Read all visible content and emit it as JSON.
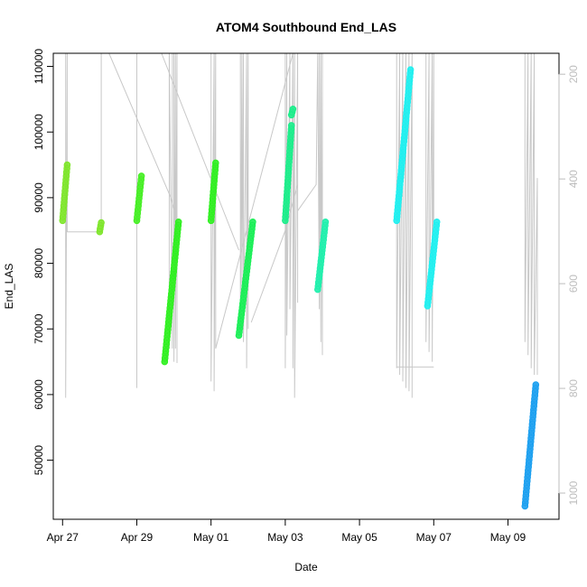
{
  "chart_data": {
    "type": "scatter",
    "title": "ATOM4 Southbound End_LAS",
    "xlabel": "Date",
    "ylabel": "End_LAS",
    "xlim": [
      "2024-04-26T18:00",
      "2024-05-10T09:00"
    ],
    "ylim": [
      41000,
      112000
    ],
    "y2lim": [
      160,
      1050
    ],
    "x_ticks": [
      "Apr 27",
      "Apr 29",
      "May 01",
      "May 03",
      "May 05",
      "May 07",
      "May 09"
    ],
    "x_tick_values": [
      "2024-04-27T00:00",
      "2024-04-29T00:00",
      "2024-05-01T00:00",
      "2024-05-03T00:00",
      "2024-05-05T00:00",
      "2024-05-07T00:00",
      "2024-05-09T00:00"
    ],
    "y_ticks": [
      50000,
      60000,
      70000,
      80000,
      90000,
      100000,
      110000
    ],
    "y2_ticks": [
      200,
      400,
      600,
      800,
      1000
    ],
    "grid": false,
    "legend": "none",
    "series": [
      {
        "color": "#7ee62a",
        "points": [
          [
            "2024-04-27T00:00",
            86500
          ],
          [
            "2024-04-27T03:00",
            95000
          ]
        ]
      },
      {
        "color": "#7ee62a",
        "points": [
          [
            "2024-04-28T00:00",
            84800
          ],
          [
            "2024-04-28T01:00",
            86200
          ]
        ]
      },
      {
        "color": "#44ef22",
        "points": [
          [
            "2024-04-29T00:00",
            86500
          ],
          [
            "2024-04-29T03:00",
            93300
          ]
        ]
      },
      {
        "color": "#2ef01f",
        "points": [
          [
            "2024-04-29T18:00",
            65000
          ],
          [
            "2024-04-30T03:00",
            86300
          ]
        ]
      },
      {
        "color": "#2ef01f",
        "points": [
          [
            "2024-05-01T00:00",
            86500
          ],
          [
            "2024-05-01T03:00",
            95300
          ]
        ]
      },
      {
        "color": "#18ef55",
        "points": [
          [
            "2024-05-01T18:00",
            69000
          ],
          [
            "2024-05-02T03:00",
            86300
          ]
        ]
      },
      {
        "color": "#1aee8a",
        "points": [
          [
            "2024-05-03T00:00",
            86500
          ],
          [
            "2024-05-03T04:00",
            101000
          ]
        ]
      },
      {
        "color": "#1aee8a",
        "points": [
          [
            "2024-05-03T04:00",
            102600
          ],
          [
            "2024-05-03T05:00",
            103500
          ]
        ]
      },
      {
        "color": "#1ef0ac",
        "points": [
          [
            "2024-05-03T21:00",
            76000
          ],
          [
            "2024-05-04T02:00",
            86300
          ]
        ]
      },
      {
        "color": "#1ef0f0",
        "points": [
          [
            "2024-05-06T00:00",
            86500
          ],
          [
            "2024-05-06T09:00",
            109500
          ]
        ]
      },
      {
        "color": "#1ef0f0",
        "points": [
          [
            "2024-05-06T20:00",
            73500
          ],
          [
            "2024-05-07T02:00",
            86300
          ]
        ]
      },
      {
        "color": "#1a9ff0",
        "points": [
          [
            "2024-05-09T11:00",
            43000
          ],
          [
            "2024-05-09T18:00",
            61500
          ]
        ]
      }
    ],
    "background_traces": [
      {
        "color": "#c8c8c8",
        "points": [
          [
            "2024-04-27T02:00",
            112000
          ],
          [
            "2024-04-27T02:00",
            59500
          ],
          [
            "2024-04-27T03:00",
            112000
          ],
          [
            "2024-04-27T03:00",
            84800
          ],
          [
            "2024-04-28T01:00",
            84800
          ],
          [
            "2024-04-28T01:00",
            112000
          ]
        ]
      },
      {
        "color": "#c8c8c8",
        "points": [
          [
            "2024-04-28T06:00",
            112000
          ],
          [
            "2024-04-29T22:00",
            90000
          ],
          [
            "2024-04-30T04:00",
            84800
          ]
        ]
      },
      {
        "color": "#c8c8c8",
        "points": [
          [
            "2024-04-29T00:00",
            65000
          ],
          [
            "2024-04-29T00:00",
            61000
          ],
          [
            "2024-04-29T00:00",
            112000
          ]
        ]
      },
      {
        "color": "#c8c8c8",
        "points": [
          [
            "2024-04-29T21:00",
            67000
          ],
          [
            "2024-04-29T21:00",
            112000
          ],
          [
            "2024-04-29T23:00",
            67000
          ],
          [
            "2024-04-29T23:00",
            112000
          ],
          [
            "2024-04-30T00:00",
            112000
          ],
          [
            "2024-04-30T00:00",
            65000
          ],
          [
            "2024-04-30T01:00",
            112000
          ],
          [
            "2024-04-30T01:00",
            67000
          ],
          [
            "2024-04-30T02:00",
            112000
          ],
          [
            "2024-04-30T02:00",
            64800
          ]
        ]
      },
      {
        "color": "#c8c8c8",
        "points": [
          [
            "2024-04-29T16:00",
            112000
          ],
          [
            "2024-05-01T18:00",
            82000
          ]
        ]
      },
      {
        "color": "#c8c8c8",
        "points": [
          [
            "2024-05-01T00:00",
            112000
          ],
          [
            "2024-05-01T00:00",
            62000
          ],
          [
            "2024-05-01T02:00",
            112000
          ],
          [
            "2024-05-01T02:00",
            60500
          ],
          [
            "2024-05-01T03:00",
            112000
          ],
          [
            "2024-05-01T03:00",
            67000
          ],
          [
            "2024-05-03T05:00",
            112000
          ]
        ]
      },
      {
        "color": "#c8c8c8",
        "points": [
          [
            "2024-05-01T19:00",
            112000
          ],
          [
            "2024-05-01T19:00",
            70000
          ],
          [
            "2024-05-01T20:00",
            112000
          ],
          [
            "2024-05-01T20:00",
            75000
          ],
          [
            "2024-05-01T21:00",
            112000
          ],
          [
            "2024-05-01T21:00",
            68000
          ],
          [
            "2024-05-01T23:00",
            112000
          ],
          [
            "2024-05-01T23:00",
            64000
          ],
          [
            "2024-05-02T00:00",
            112000
          ],
          [
            "2024-05-02T00:00",
            70000
          ]
        ]
      },
      {
        "color": "#c8c8c8",
        "points": [
          [
            "2024-05-02T02:00",
            71000
          ],
          [
            "2024-05-03T00:00",
            85000
          ],
          [
            "2024-05-03T08:00",
            92000
          ]
        ]
      },
      {
        "color": "#c8c8c8",
        "points": [
          [
            "2024-05-03T00:00",
            112000
          ],
          [
            "2024-05-03T00:00",
            64000
          ],
          [
            "2024-05-03T01:00",
            112000
          ],
          [
            "2024-05-03T01:00",
            69000
          ],
          [
            "2024-05-03T03:00",
            112000
          ],
          [
            "2024-05-03T03:00",
            73000
          ],
          [
            "2024-05-03T05:00",
            112000
          ],
          [
            "2024-05-03T05:00",
            64000
          ],
          [
            "2024-05-03T06:00",
            112000
          ],
          [
            "2024-05-03T06:00",
            59500
          ],
          [
            "2024-05-03T08:00",
            112000
          ],
          [
            "2024-05-03T08:00",
            74000
          ]
        ]
      },
      {
        "color": "#c8c8c8",
        "points": [
          [
            "2024-05-03T08:00",
            88000
          ],
          [
            "2024-05-03T20:00",
            92000
          ],
          [
            "2024-05-03T21:00",
            112000
          ],
          [
            "2024-05-03T22:00",
            73000
          ],
          [
            "2024-05-03T22:00",
            112000
          ],
          [
            "2024-05-03T23:00",
            68000
          ],
          [
            "2024-05-03T23:00",
            112000
          ],
          [
            "2024-05-04T00:00",
            66000
          ],
          [
            "2024-05-04T00:00",
            112000
          ],
          [
            "2024-05-03T12:00",
            112000
          ]
        ]
      },
      {
        "color": "#c8c8c8",
        "points": [
          [
            "2024-05-06T00:00",
            112000
          ],
          [
            "2024-05-06T00:00",
            64000
          ],
          [
            "2024-05-06T02:00",
            112000
          ],
          [
            "2024-05-06T02:00",
            63000
          ],
          [
            "2024-05-06T04:00",
            112000
          ],
          [
            "2024-05-06T04:00",
            62000
          ],
          [
            "2024-05-06T06:00",
            112000
          ],
          [
            "2024-05-06T06:00",
            61000
          ],
          [
            "2024-05-06T08:00",
            112000
          ],
          [
            "2024-05-06T08:00",
            60500
          ],
          [
            "2024-05-06T10:00",
            112000
          ],
          [
            "2024-05-06T10:00",
            59500
          ]
        ]
      },
      {
        "color": "#c8c8c8",
        "points": [
          [
            "2024-05-06T00:00",
            64200
          ],
          [
            "2024-05-07T00:00",
            64200
          ]
        ]
      },
      {
        "color": "#c8c8c8",
        "points": [
          [
            "2024-05-06T19:00",
            112000
          ],
          [
            "2024-05-06T19:00",
            68000
          ],
          [
            "2024-05-06T21:00",
            112000
          ],
          [
            "2024-05-06T21:00",
            66500
          ],
          [
            "2024-05-06T23:00",
            112000
          ],
          [
            "2024-05-06T23:00",
            65000
          ],
          [
            "2024-05-07T00:00",
            112000
          ],
          [
            "2024-05-07T00:00",
            86000
          ]
        ]
      },
      {
        "color": "#c8c8c8",
        "points": [
          [
            "2024-05-09T11:00",
            112000
          ],
          [
            "2024-05-09T11:00",
            68000
          ],
          [
            "2024-05-09T13:00",
            112000
          ],
          [
            "2024-05-09T13:00",
            66000
          ],
          [
            "2024-05-09T15:00",
            112000
          ],
          [
            "2024-05-09T15:00",
            64000
          ],
          [
            "2024-05-09T17:00",
            112000
          ],
          [
            "2024-05-09T17:00",
            63000
          ],
          [
            "2024-05-09T19:00",
            93000
          ],
          [
            "2024-05-09T19:00",
            63000
          ]
        ]
      }
    ]
  }
}
